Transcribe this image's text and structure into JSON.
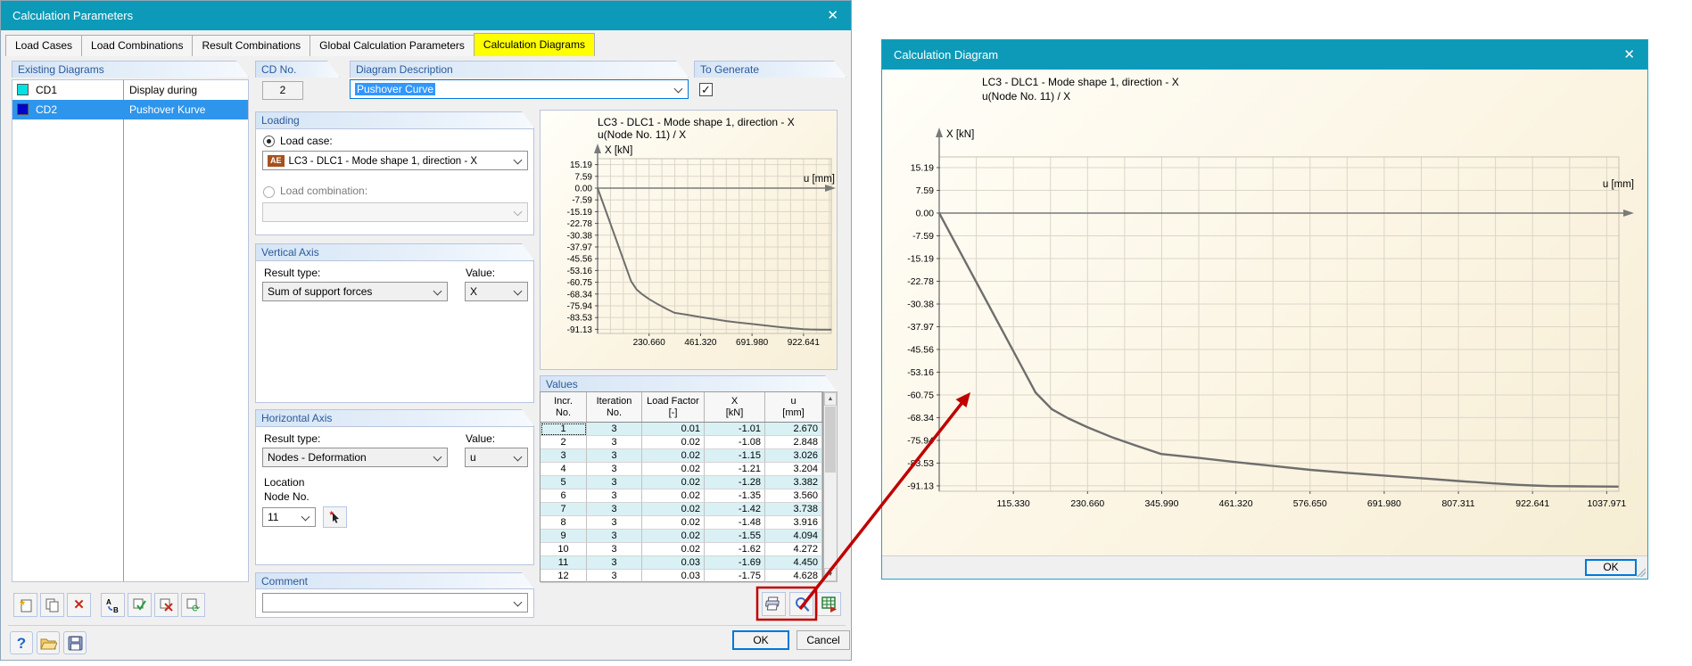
{
  "left_dialog": {
    "title": "Calculation Parameters",
    "tabs": [
      "Load Cases",
      "Load Combinations",
      "Result Combinations",
      "Global Calculation Parameters",
      "Calculation Diagrams"
    ],
    "active_tab": "Calculation Diagrams",
    "existing_diagrams": {
      "header": "Existing Diagrams",
      "items": [
        {
          "id": "CD1",
          "color": "#00E1E1",
          "description": "Display during calculation",
          "selected": false
        },
        {
          "id": "CD2",
          "color": "#0202CB",
          "description": "Pushover Kurve",
          "selected": true
        }
      ]
    },
    "cd_no": {
      "label": "CD No.",
      "value": "2"
    },
    "diagram_description": {
      "label": "Diagram Description",
      "value": "Pushover Curve"
    },
    "to_generate": {
      "label": "To Generate",
      "checked": true
    },
    "loading": {
      "header": "Loading",
      "load_case_label": "Load case:",
      "load_case_badge": "AE",
      "load_case_value": "LC3 - DLC1 - Mode shape 1, direction - X",
      "load_combination_label": "Load combination:",
      "load_combination_value": ""
    },
    "vertical_axis": {
      "header": "Vertical Axis",
      "result_type_label": "Result type:",
      "result_type_value": "Sum of support forces",
      "value_label": "Value:",
      "value_value": "X"
    },
    "horizontal_axis": {
      "header": "Horizontal Axis",
      "result_type_label": "Result type:",
      "result_type_value": "Nodes - Deformation",
      "value_label": "Value:",
      "value_value": "u",
      "location_label": "Location",
      "node_no_label": "Node No.",
      "node_no_value": "11"
    },
    "comment": {
      "header": "Comment",
      "value": ""
    },
    "values_panel": {
      "header": "Values",
      "columns": [
        [
          "Incr.",
          "No."
        ],
        [
          "Iteration",
          "No."
        ],
        [
          "Load Factor",
          "[-]"
        ],
        [
          "X",
          "[kN]"
        ],
        [
          "u",
          "[mm]"
        ]
      ],
      "rows": [
        [
          "1",
          "3",
          "0.01",
          "-1.01",
          "2.670"
        ],
        [
          "2",
          "3",
          "0.02",
          "-1.08",
          "2.848"
        ],
        [
          "3",
          "3",
          "0.02",
          "-1.15",
          "3.026"
        ],
        [
          "4",
          "3",
          "0.02",
          "-1.21",
          "3.204"
        ],
        [
          "5",
          "3",
          "0.02",
          "-1.28",
          "3.382"
        ],
        [
          "6",
          "3",
          "0.02",
          "-1.35",
          "3.560"
        ],
        [
          "7",
          "3",
          "0.02",
          "-1.42",
          "3.738"
        ],
        [
          "8",
          "3",
          "0.02",
          "-1.48",
          "3.916"
        ],
        [
          "9",
          "3",
          "0.02",
          "-1.55",
          "4.094"
        ],
        [
          "10",
          "3",
          "0.02",
          "-1.62",
          "4.272"
        ],
        [
          "11",
          "3",
          "0.03",
          "-1.69",
          "4.450"
        ],
        [
          "12",
          "3",
          "0.03",
          "-1.75",
          "4.628"
        ]
      ]
    },
    "buttons": {
      "ok": "OK",
      "cancel": "Cancel"
    }
  },
  "right_dialog": {
    "title": "Calculation Diagram",
    "ok": "OK"
  },
  "icons": {
    "close": "✕",
    "help": "?",
    "star": "★",
    "check": "✓",
    "cross": "✕",
    "refresh": "⟳",
    "up": "▲",
    "down": "▼",
    "sort_a": "A",
    "sort_b": "B"
  },
  "annotation_color": "#C00000",
  "chart_data": [
    {
      "type": "line",
      "name": "pushover-curve-preview",
      "title": "LC3 - DLC1 - Mode shape 1, direction - X",
      "subtitle": "u(Node No. 11) / X",
      "xlabel": "u [mm]",
      "ylabel": "X [kN]",
      "x_tick_labels": [
        "230.660",
        "461.320",
        "691.980",
        "922.641"
      ],
      "y_tick_labels": [
        "15.19",
        "7.59",
        "0.00",
        "-7.59",
        "-15.19",
        "-22.78",
        "-30.38",
        "-37.97",
        "-45.56",
        "-53.16",
        "-60.75",
        "-68.34",
        "-75.94",
        "-83.53",
        "-91.13"
      ],
      "xlim": [
        0,
        1050
      ],
      "ylim": [
        -95,
        20
      ],
      "grid": true,
      "legend": "none",
      "line_color": "#6E6E6E",
      "points": [
        [
          0,
          0
        ],
        [
          75,
          -30
        ],
        [
          150,
          -60
        ],
        [
          175,
          -65.5
        ],
        [
          200,
          -68.5
        ],
        [
          230,
          -71.5
        ],
        [
          270,
          -75
        ],
        [
          310,
          -78
        ],
        [
          345,
          -80.5
        ],
        [
          400,
          -81.7
        ],
        [
          461,
          -83.2
        ],
        [
          520,
          -84.5
        ],
        [
          577,
          -85.8
        ],
        [
          635,
          -86.8
        ],
        [
          692,
          -87.7
        ],
        [
          750,
          -88.6
        ],
        [
          807,
          -89.5
        ],
        [
          860,
          -90.3
        ],
        [
          900,
          -90.8
        ],
        [
          922,
          -91.0
        ],
        [
          950,
          -91.2
        ],
        [
          1000,
          -91.3
        ],
        [
          1045,
          -91.35
        ]
      ]
    },
    {
      "type": "line",
      "name": "pushover-curve-large",
      "title": "LC3 - DLC1 - Mode shape 1, direction - X",
      "subtitle": "u(Node No. 11) / X",
      "xlabel": "u [mm]",
      "ylabel": "X [kN]",
      "x_tick_labels": [
        "115.330",
        "230.660",
        "345.990",
        "461.320",
        "576.650",
        "691.980",
        "807.311",
        "922.641",
        "1037.971"
      ],
      "y_tick_labels": [
        "15.19",
        "7.59",
        "0.00",
        "-7.59",
        "-15.19",
        "-22.78",
        "-30.38",
        "-37.97",
        "-45.56",
        "-53.16",
        "-60.75",
        "-68.34",
        "-75.94",
        "-83.53",
        "-91.13"
      ],
      "xlim": [
        0,
        1057
      ],
      "ylim": [
        -95,
        20
      ],
      "grid": true,
      "legend": "none",
      "line_color": "#6E6E6E",
      "points": [
        [
          0,
          0
        ],
        [
          75,
          -30
        ],
        [
          150,
          -60
        ],
        [
          175,
          -65.5
        ],
        [
          200,
          -68.5
        ],
        [
          230,
          -71.5
        ],
        [
          270,
          -75
        ],
        [
          310,
          -78
        ],
        [
          345,
          -80.5
        ],
        [
          400,
          -81.7
        ],
        [
          461,
          -83.2
        ],
        [
          520,
          -84.5
        ],
        [
          577,
          -85.8
        ],
        [
          635,
          -86.8
        ],
        [
          692,
          -87.7
        ],
        [
          750,
          -88.6
        ],
        [
          807,
          -89.5
        ],
        [
          860,
          -90.3
        ],
        [
          900,
          -90.8
        ],
        [
          922,
          -91.0
        ],
        [
          950,
          -91.2
        ],
        [
          1000,
          -91.3
        ],
        [
          1055,
          -91.4
        ]
      ]
    }
  ]
}
